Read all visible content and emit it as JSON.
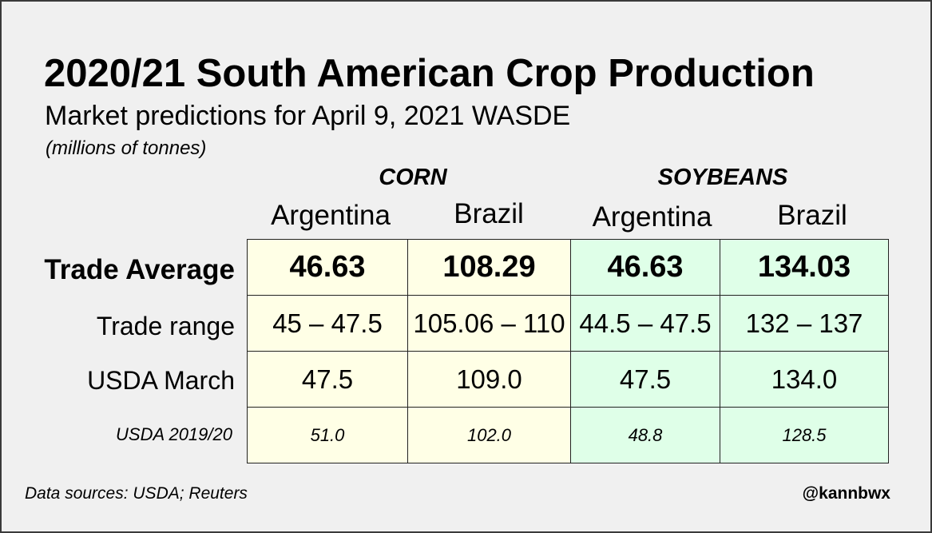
{
  "title": "2020/21 South American Crop Production",
  "subtitle": "Market predictions for April 9, 2021 WASDE",
  "units": "(millions of tonnes)",
  "groups": [
    "CORN",
    "SOYBEANS"
  ],
  "columns": [
    "Argentina",
    "Brazil",
    "Argentina",
    "Brazil"
  ],
  "rows": [
    {
      "label": "Trade Average",
      "values": [
        "46.63",
        "108.29",
        "46.63",
        "134.03"
      ]
    },
    {
      "label": "Trade range",
      "values": [
        "45 – 47.5",
        "105.06 – 110",
        "44.5 – 47.5",
        "132 – 137"
      ]
    },
    {
      "label": "USDA March",
      "values": [
        "47.5",
        "109.0",
        "47.5",
        "134.0"
      ]
    },
    {
      "label": "USDA 2019/20",
      "values": [
        "51.0",
        "102.0",
        "48.8",
        "128.5"
      ]
    }
  ],
  "footer": {
    "source": "Data sources: USDA; Reuters",
    "handle": "@kannbwx"
  },
  "colors": {
    "corn_fill": "#ffffe6",
    "soy_fill": "#dfffe8",
    "background": "#f0f0f0",
    "border": "#3a3a3a"
  }
}
